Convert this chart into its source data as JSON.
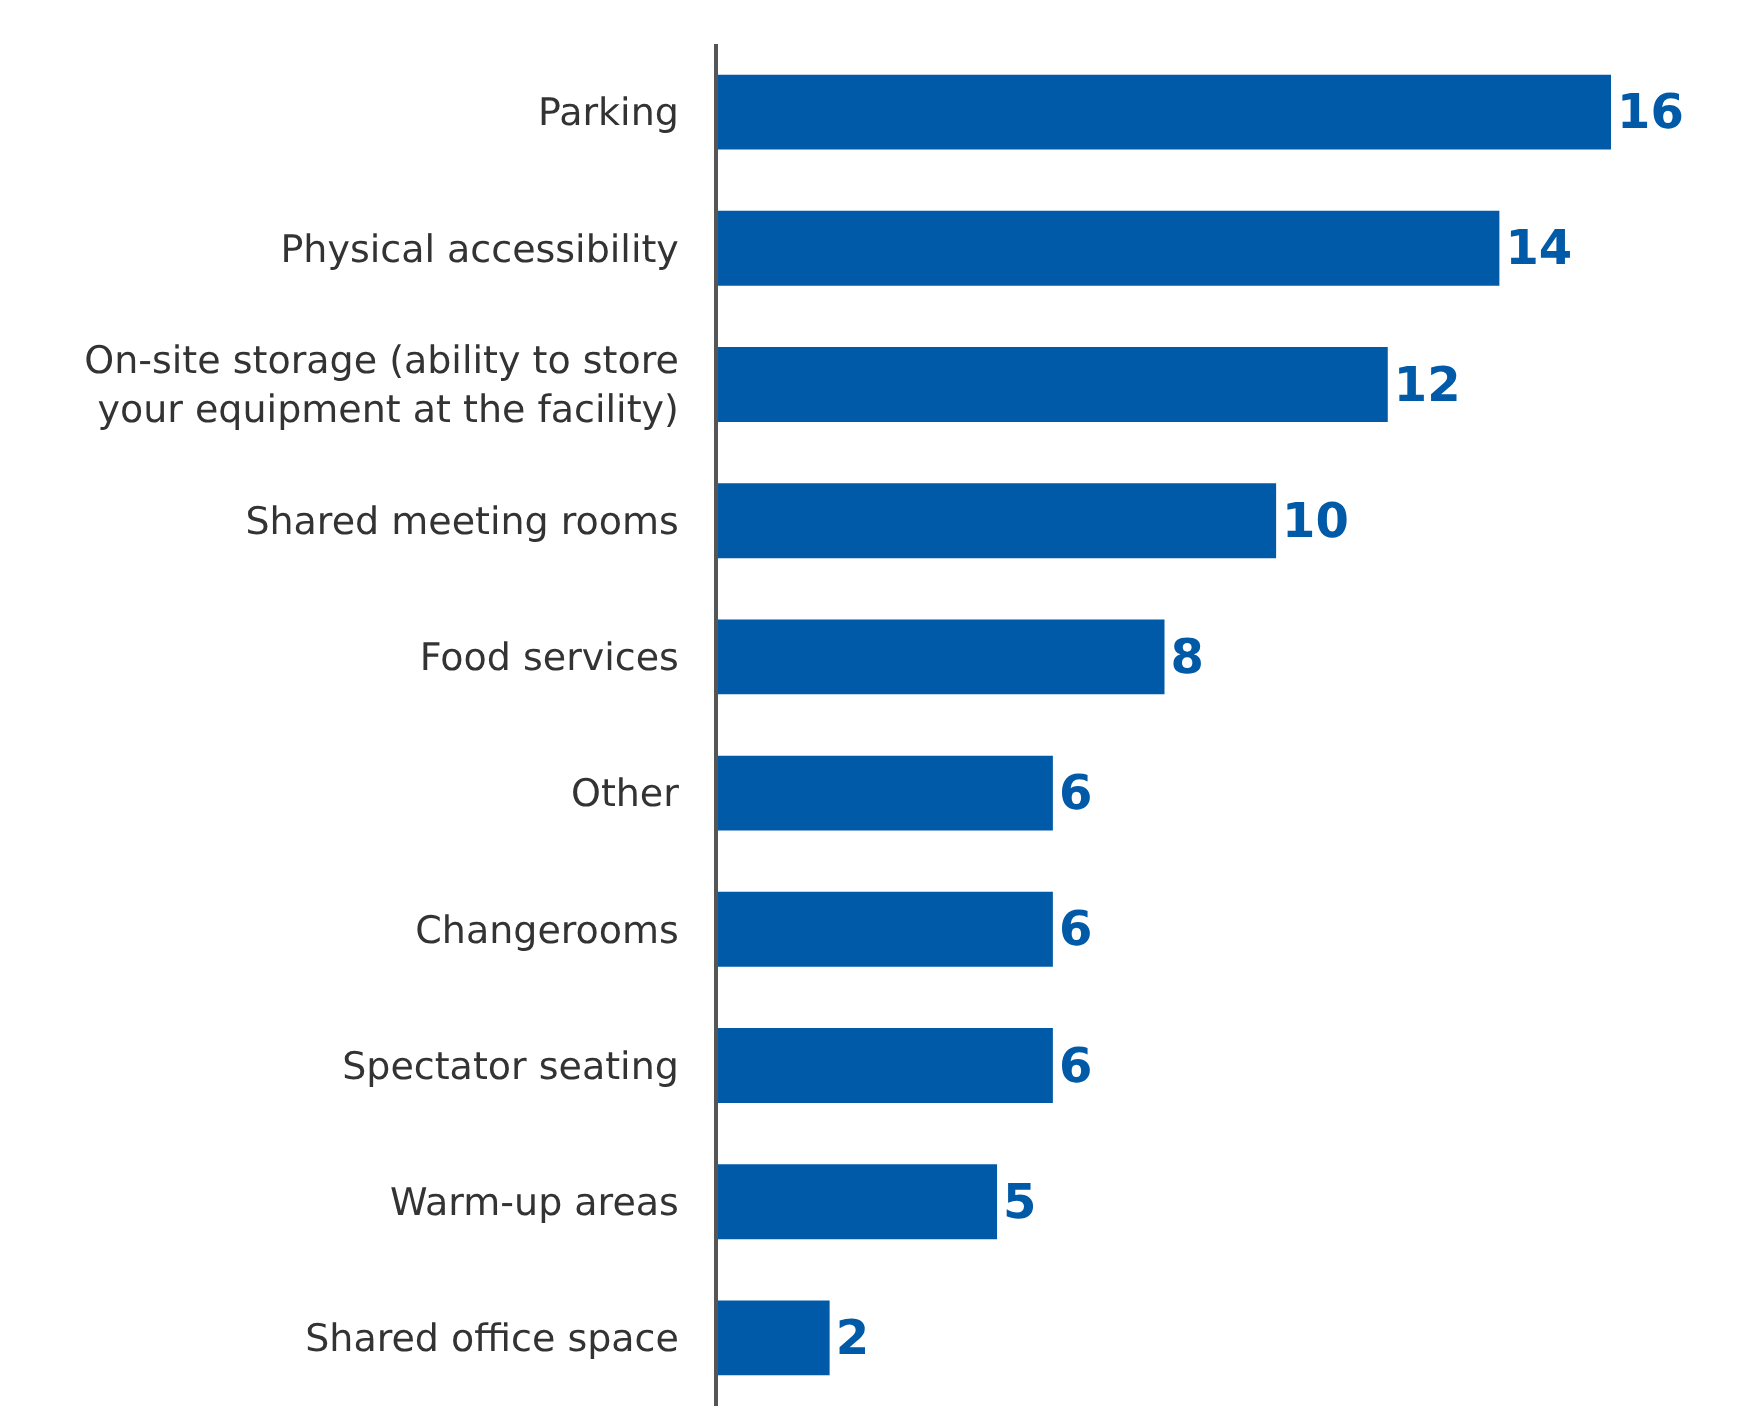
{
  "chart_data": {
    "type": "bar",
    "orientation": "horizontal",
    "categories": [
      "Parking",
      "Physical accessibility",
      "On-site storage (ability to store\nyour equipment at the facility)",
      "Shared meeting rooms",
      "Food services",
      "Other",
      "Changerooms",
      "Spectator seating",
      "Warm-up areas",
      "Shared office space"
    ],
    "values": [
      16,
      14,
      12,
      10,
      8,
      6,
      6,
      6,
      5,
      2
    ],
    "color": "#005aa7",
    "data_labels": true,
    "tick_labels": "y"
  }
}
